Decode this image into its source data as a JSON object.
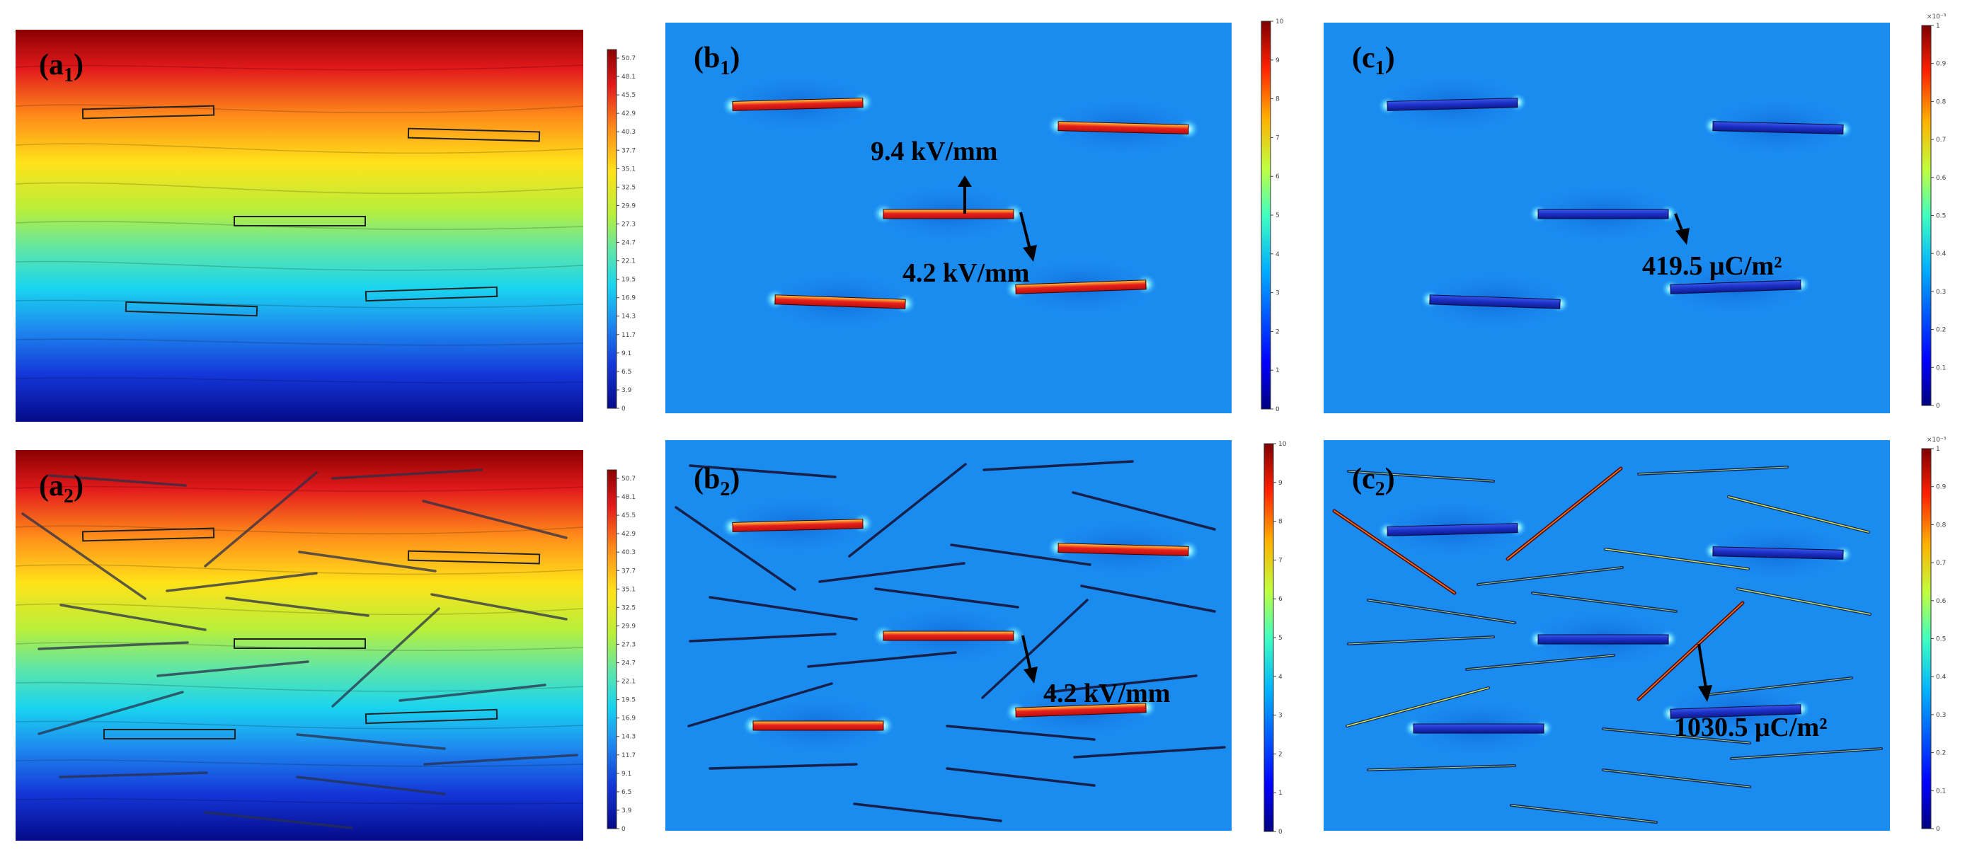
{
  "figure": {
    "colors": {
      "field_blue": "#1a8cf0",
      "axis_dark_blue": "#00007f",
      "dark_red": "#7f0000",
      "red": "#e8201c",
      "orange": "#ffa020",
      "yellow": "#fff200",
      "cyan": "#10e0f0",
      "line_dark": "#2a2f4a"
    },
    "colorbars": {
      "a_ticks": [
        "50.7",
        "48.1",
        "45.5",
        "42.9",
        "40.3",
        "37.7",
        "35.1",
        "32.5",
        "29.9",
        "27.3",
        "24.7",
        "22.1",
        "19.5",
        "16.9",
        "14.3",
        "11.7",
        "9.1",
        "6.5",
        "3.9",
        "0"
      ],
      "b_ticks": [
        "10",
        "9",
        "8",
        "7",
        "6",
        "5",
        "4",
        "3",
        "2",
        "1",
        "0"
      ],
      "c_ticks": [
        "1",
        "0.9",
        "0.8",
        "0.7",
        "0.6",
        "0.5",
        "0.4",
        "0.3",
        "0.2",
        "0.1",
        "0"
      ],
      "c_exponent": "×10⁻³"
    },
    "panels": [
      {
        "id": "a1",
        "letter": "(a",
        "sub": "1",
        "close": ")"
      },
      {
        "id": "b1",
        "letter": "(b",
        "sub": "1",
        "close": ")"
      },
      {
        "id": "c1",
        "letter": "(c",
        "sub": "1",
        "close": ")"
      },
      {
        "id": "a2",
        "letter": "(a",
        "sub": "2",
        "close": ")"
      },
      {
        "id": "b2",
        "letter": "(b",
        "sub": "2",
        "close": ")"
      },
      {
        "id": "c2",
        "letter": "(c",
        "sub": "2",
        "close": ")"
      }
    ],
    "annotations": {
      "b1_top": "9.4 kV/mm",
      "b1_bottom": "4.2 kV/mm",
      "b2": "4.2 kV/mm",
      "c1": "419.5 μC/m²",
      "c2": "1030.5 μC/m²"
    }
  }
}
